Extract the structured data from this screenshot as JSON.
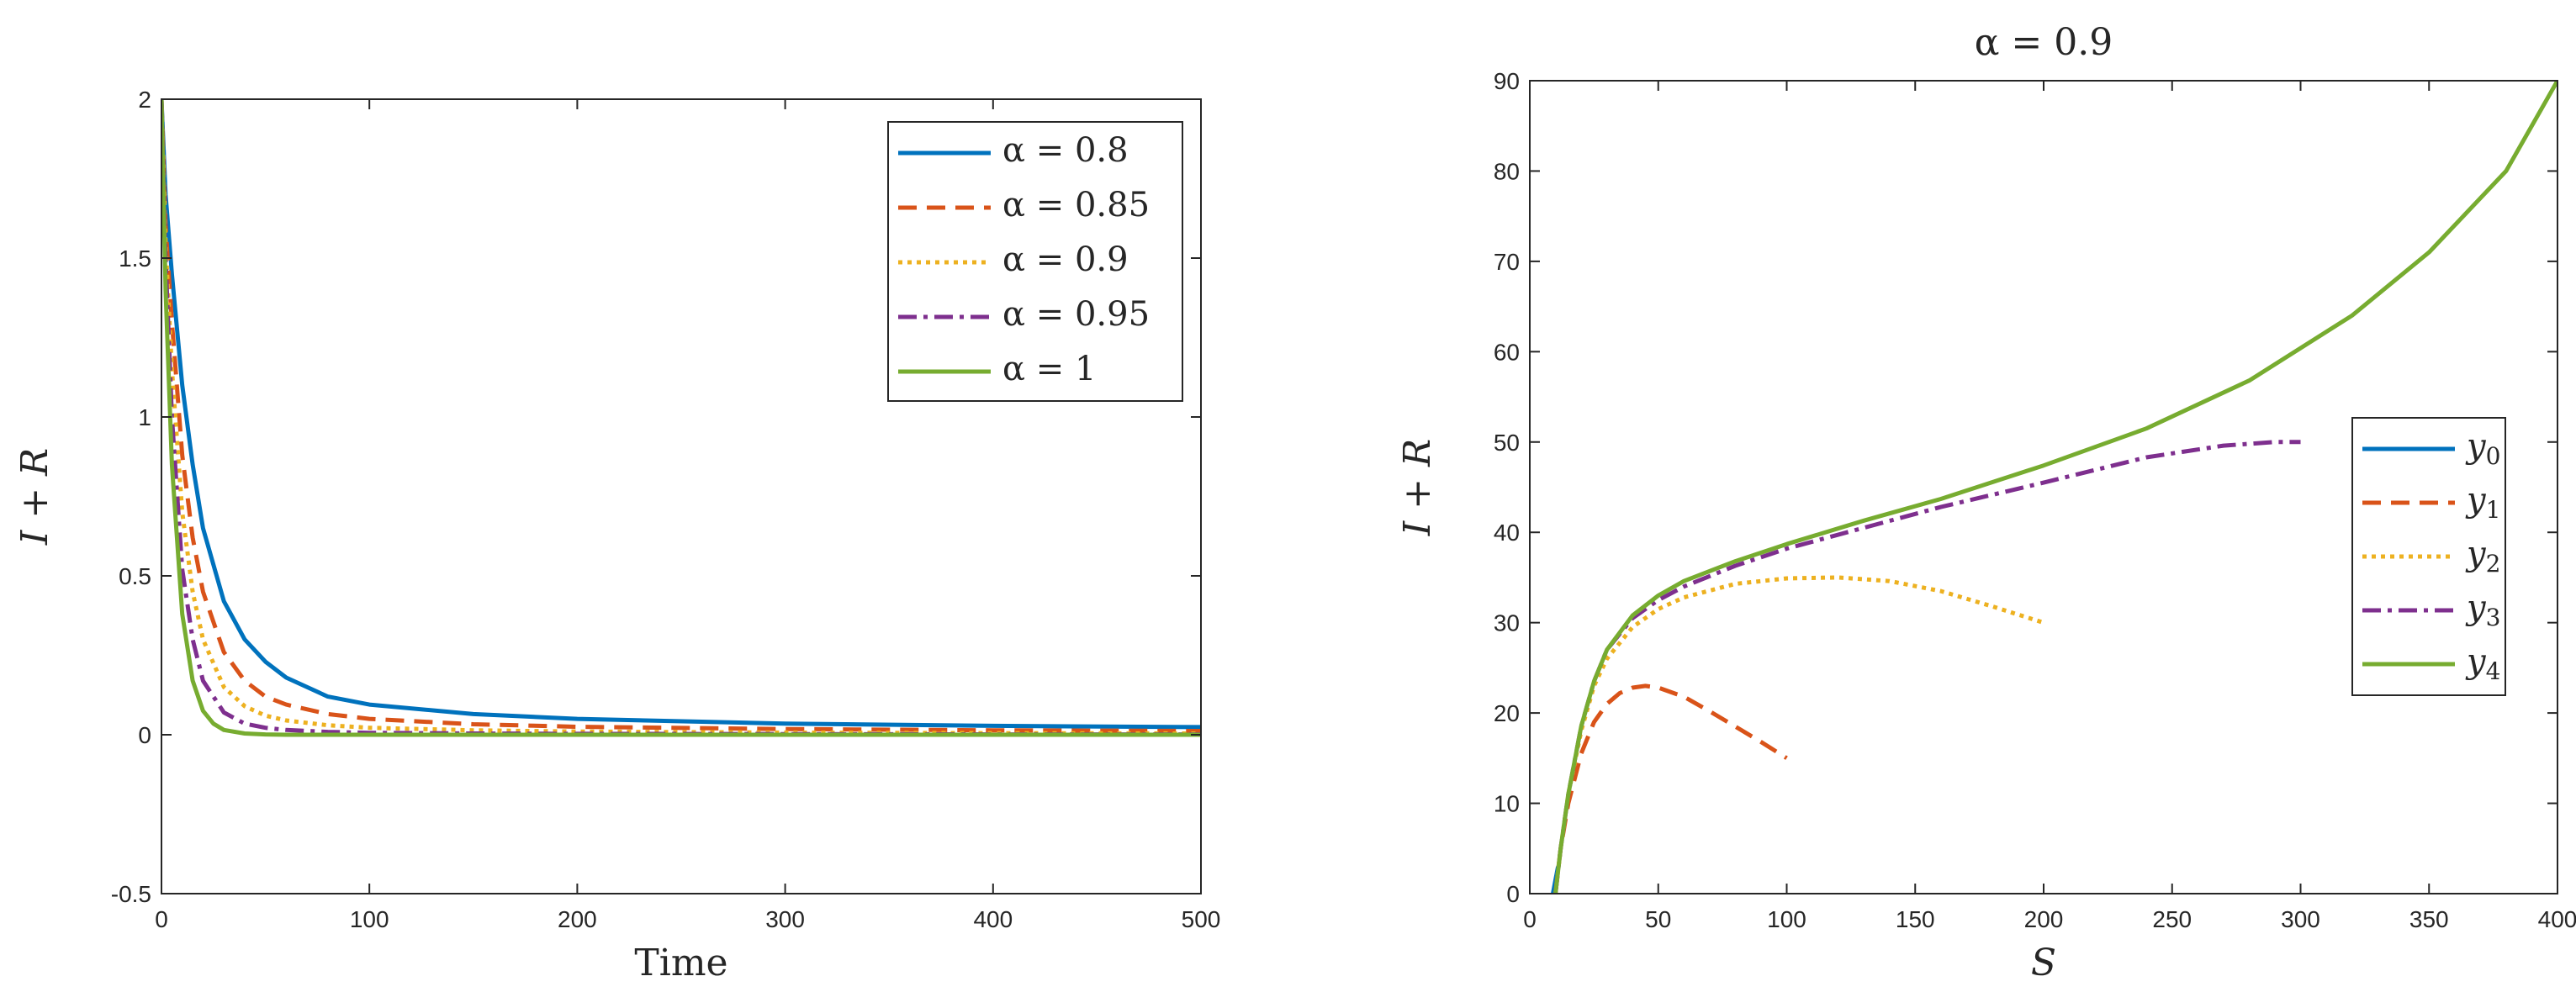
{
  "chart_data": [
    {
      "type": "line",
      "title": "",
      "xlabel": "Time",
      "ylabel": "I + R",
      "xlim": [
        0,
        500
      ],
      "ylim": [
        -0.5,
        2
      ],
      "xticks": [
        "0",
        "100",
        "200",
        "300",
        "400",
        "500"
      ],
      "yticks": [
        "-0.5",
        "0",
        "0.5",
        "1",
        "1.5",
        "2"
      ],
      "grid": false,
      "legend_position": "top-right",
      "series": [
        {
          "name": "α = 0.8",
          "color": "#0072BD",
          "dash": "solid",
          "x": [
            0,
            2,
            5,
            10,
            15,
            20,
            30,
            40,
            50,
            60,
            80,
            100,
            150,
            200,
            300,
            400,
            500
          ],
          "y": [
            2.0,
            1.7,
            1.45,
            1.1,
            0.85,
            0.65,
            0.42,
            0.3,
            0.23,
            0.18,
            0.12,
            0.095,
            0.065,
            0.05,
            0.035,
            0.028,
            0.024
          ]
        },
        {
          "name": "α = 0.85",
          "color": "#D95319",
          "dash": "dashed",
          "x": [
            0,
            2,
            5,
            10,
            15,
            20,
            30,
            40,
            50,
            60,
            80,
            100,
            150,
            200,
            300,
            400,
            500
          ],
          "y": [
            2.0,
            1.6,
            1.3,
            0.88,
            0.62,
            0.45,
            0.26,
            0.17,
            0.12,
            0.095,
            0.065,
            0.05,
            0.033,
            0.025,
            0.018,
            0.014,
            0.012
          ]
        },
        {
          "name": "α = 0.9",
          "color": "#EDB120",
          "dash": "dotted",
          "x": [
            0,
            2,
            5,
            10,
            15,
            20,
            30,
            40,
            50,
            60,
            80,
            100,
            150,
            200,
            300,
            400,
            500
          ],
          "y": [
            2.0,
            1.55,
            1.15,
            0.7,
            0.45,
            0.3,
            0.15,
            0.09,
            0.06,
            0.045,
            0.03,
            0.022,
            0.014,
            0.01,
            0.007,
            0.005,
            0.004
          ]
        },
        {
          "name": "α = 0.95",
          "color": "#7E2F8E",
          "dash": "dashdot",
          "x": [
            0,
            2,
            5,
            10,
            15,
            20,
            30,
            40,
            50,
            60,
            80,
            100,
            150,
            200,
            300,
            400,
            500
          ],
          "y": [
            2.0,
            1.5,
            1.0,
            0.52,
            0.3,
            0.17,
            0.07,
            0.035,
            0.022,
            0.015,
            0.009,
            0.006,
            0.004,
            0.003,
            0.002,
            0.001,
            0.001
          ]
        },
        {
          "name": "α = 1",
          "color": "#77AC30",
          "dash": "solid",
          "x": [
            0,
            2,
            5,
            10,
            15,
            20,
            25,
            30,
            40,
            50,
            60,
            80,
            100,
            200,
            300,
            400,
            500
          ],
          "y": [
            2.0,
            1.4,
            0.85,
            0.38,
            0.17,
            0.075,
            0.035,
            0.015,
            0.004,
            0.001,
            0.0,
            0.0,
            0.0,
            0.0,
            0.0,
            0.0,
            0.0
          ]
        }
      ]
    },
    {
      "type": "line",
      "title": "α = 0.9",
      "xlabel": "S",
      "ylabel": "I + R",
      "xlim": [
        0,
        400
      ],
      "ylim": [
        0,
        90
      ],
      "xticks": [
        "0",
        "50",
        "100",
        "150",
        "200",
        "250",
        "300",
        "350",
        "400"
      ],
      "yticks": [
        "0",
        "10",
        "20",
        "30",
        "40",
        "50",
        "60",
        "70",
        "80",
        "90"
      ],
      "grid": false,
      "legend_position": "right",
      "series": [
        {
          "name": "y0",
          "color": "#0072BD",
          "dash": "solid",
          "x": [
            9,
            10,
            11
          ],
          "y": [
            0,
            1.5,
            3
          ]
        },
        {
          "name": "y1",
          "color": "#D95319",
          "dash": "dashed",
          "x": [
            10,
            12,
            15,
            20,
            25,
            30,
            35,
            40,
            45,
            50,
            60,
            70,
            80,
            90,
            100
          ],
          "y": [
            0,
            5,
            10,
            15.5,
            19,
            21,
            22.2,
            22.8,
            23,
            22.8,
            21.8,
            20.2,
            18.5,
            16.8,
            15
          ]
        },
        {
          "name": "y2",
          "color": "#EDB120",
          "dash": "dotted",
          "x": [
            10,
            12,
            15,
            20,
            25,
            30,
            40,
            50,
            60,
            80,
            100,
            120,
            140,
            160,
            180,
            200
          ],
          "y": [
            0,
            5,
            11,
            18,
            23,
            26,
            29.5,
            31.5,
            32.8,
            34.3,
            34.9,
            35,
            34.6,
            33.5,
            31.8,
            30
          ]
        },
        {
          "name": "y3",
          "color": "#7E2F8E",
          "dash": "dashdot",
          "x": [
            10,
            12,
            15,
            20,
            25,
            30,
            40,
            50,
            60,
            80,
            100,
            130,
            160,
            200,
            240,
            270,
            290,
            300
          ],
          "y": [
            0,
            5,
            11,
            18.5,
            23.5,
            27,
            30.5,
            32.5,
            34,
            36.3,
            38.2,
            40.5,
            42.8,
            45.5,
            48.3,
            49.6,
            50,
            50
          ]
        },
        {
          "name": "y4",
          "color": "#77AC30",
          "dash": "solid",
          "x": [
            10,
            12,
            15,
            20,
            25,
            30,
            40,
            50,
            60,
            80,
            100,
            130,
            160,
            200,
            240,
            280,
            320,
            350,
            380,
            400
          ],
          "y": [
            0,
            5,
            11,
            18.5,
            23.5,
            27,
            30.8,
            33,
            34.6,
            36.8,
            38.7,
            41.3,
            43.7,
            47.4,
            51.5,
            56.8,
            64,
            71,
            80,
            90
          ]
        }
      ]
    }
  ]
}
